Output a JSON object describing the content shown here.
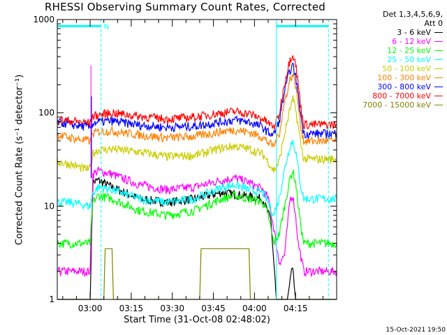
{
  "chart_data": {
    "type": "line",
    "title": "RHESSI Observing Summary Count Rates, Corrected",
    "xlabel": "Start Time (31-Oct-08 02:48:02)",
    "ylabel": "Corrected Count Rate (s⁻¹ detector⁻¹)",
    "yscale": "log",
    "ylim": [
      1,
      1000
    ],
    "xlim_minutes": [
      0,
      102
    ],
    "x_ticks": [
      {
        "label": "03:00",
        "minutes": 12
      },
      {
        "label": "03:15",
        "minutes": 27
      },
      {
        "label": "03:30",
        "minutes": 42
      },
      {
        "label": "03:45",
        "minutes": 57
      },
      {
        "label": "04:00",
        "minutes": 72
      },
      {
        "label": "04:15",
        "minutes": 87
      }
    ],
    "y_ticks": [
      {
        "label": "1000",
        "value": 1000
      },
      {
        "label": "100",
        "value": 100
      },
      {
        "label": "10",
        "value": 10
      },
      {
        "label": "1",
        "value": 1
      }
    ],
    "legend_header": [
      "Det 1,3,4,5,6,9,",
      "Att 0"
    ],
    "legend_placement": "right",
    "series": [
      {
        "name": "3 - 6 keV",
        "color": "#000000",
        "points": [
          [
            0,
            1
          ],
          [
            12,
            1
          ],
          [
            13,
            18
          ],
          [
            15,
            19
          ],
          [
            20,
            16
          ],
          [
            30,
            12
          ],
          [
            40,
            11
          ],
          [
            50,
            12
          ],
          [
            60,
            14
          ],
          [
            68,
            13
          ],
          [
            75,
            12
          ],
          [
            78,
            7
          ],
          [
            80,
            1
          ],
          [
            84,
            1
          ],
          [
            85.5,
            2
          ],
          [
            86,
            2
          ],
          [
            87,
            1
          ],
          [
            102,
            1
          ]
        ]
      },
      {
        "name": "6 - 12 keV",
        "color": "#ff00ff",
        "points": [
          [
            0,
            2
          ],
          [
            12,
            2
          ],
          [
            13,
            22
          ],
          [
            15,
            24
          ],
          [
            20,
            22
          ],
          [
            30,
            17
          ],
          [
            40,
            15
          ],
          [
            50,
            16
          ],
          [
            60,
            19
          ],
          [
            65,
            20
          ],
          [
            70,
            18
          ],
          [
            75,
            15
          ],
          [
            77,
            12
          ],
          [
            79,
            6
          ],
          [
            81,
            2.5
          ],
          [
            83,
            3
          ],
          [
            84,
            6
          ],
          [
            85,
            12
          ],
          [
            86,
            13
          ],
          [
            87,
            8
          ],
          [
            88,
            4
          ],
          [
            90,
            2
          ],
          [
            102,
            2
          ]
        ]
      },
      {
        "name": "12 - 25 keV",
        "color": "#00ff00",
        "points": [
          [
            0,
            4
          ],
          [
            12,
            4
          ],
          [
            13,
            11
          ],
          [
            15,
            13
          ],
          [
            20,
            12
          ],
          [
            30,
            9
          ],
          [
            40,
            8
          ],
          [
            50,
            9
          ],
          [
            60,
            12
          ],
          [
            65,
            13
          ],
          [
            70,
            12
          ],
          [
            75,
            11
          ],
          [
            77,
            8
          ],
          [
            79,
            4
          ],
          [
            81,
            5
          ],
          [
            83,
            10
          ],
          [
            85,
            20
          ],
          [
            86,
            24
          ],
          [
            87,
            18
          ],
          [
            88,
            10
          ],
          [
            89,
            6
          ],
          [
            90,
            4
          ],
          [
            102,
            4
          ]
        ]
      },
      {
        "name": "25 - 50 keV",
        "color": "#00ffff",
        "points": [
          [
            0,
            11
          ],
          [
            5,
            11
          ],
          [
            12,
            10
          ],
          [
            13,
            14
          ],
          [
            15,
            16
          ],
          [
            20,
            15
          ],
          [
            30,
            12
          ],
          [
            40,
            11
          ],
          [
            50,
            12
          ],
          [
            60,
            16
          ],
          [
            65,
            17
          ],
          [
            70,
            15
          ],
          [
            75,
            14
          ],
          [
            77,
            11
          ],
          [
            79,
            8
          ],
          [
            81,
            12
          ],
          [
            83,
            25
          ],
          [
            85,
            45
          ],
          [
            86,
            50
          ],
          [
            87,
            40
          ],
          [
            88,
            25
          ],
          [
            89,
            16
          ],
          [
            90,
            12
          ],
          [
            102,
            12
          ]
        ]
      },
      {
        "name": "50 - 100 keV",
        "color": "#cccc00",
        "points": [
          [
            0,
            30
          ],
          [
            5,
            28
          ],
          [
            10,
            25
          ],
          [
            12,
            25
          ],
          [
            13,
            37
          ],
          [
            15,
            40
          ],
          [
            20,
            41
          ],
          [
            30,
            38
          ],
          [
            40,
            34
          ],
          [
            50,
            35
          ],
          [
            60,
            42
          ],
          [
            65,
            44
          ],
          [
            70,
            41
          ],
          [
            75,
            36
          ],
          [
            77,
            30
          ],
          [
            79,
            24
          ],
          [
            81,
            30
          ],
          [
            83,
            60
          ],
          [
            85,
            110
          ],
          [
            86,
            140
          ],
          [
            87,
            110
          ],
          [
            88,
            70
          ],
          [
            89,
            45
          ],
          [
            90,
            32
          ],
          [
            102,
            32
          ]
        ]
      },
      {
        "name": "100 - 300 keV",
        "color": "#ff8000",
        "points": [
          [
            0,
            58
          ],
          [
            5,
            54
          ],
          [
            12,
            50
          ],
          [
            13,
            60
          ],
          [
            15,
            63
          ],
          [
            20,
            64
          ],
          [
            30,
            58
          ],
          [
            40,
            54
          ],
          [
            50,
            56
          ],
          [
            60,
            63
          ],
          [
            65,
            66
          ],
          [
            70,
            62
          ],
          [
            75,
            55
          ],
          [
            77,
            48
          ],
          [
            79,
            44
          ],
          [
            81,
            60
          ],
          [
            83,
            130
          ],
          [
            85,
            230
          ],
          [
            86,
            260
          ],
          [
            87,
            200
          ],
          [
            88,
            120
          ],
          [
            89,
            70
          ],
          [
            90,
            50
          ],
          [
            102,
            50
          ]
        ]
      },
      {
        "name": "300 - 800 keV",
        "color": "#0000ff",
        "points": [
          [
            0,
            80
          ],
          [
            5,
            75
          ],
          [
            12,
            70
          ],
          [
            13,
            78
          ],
          [
            15,
            80
          ],
          [
            20,
            82
          ],
          [
            30,
            74
          ],
          [
            40,
            70
          ],
          [
            50,
            72
          ],
          [
            60,
            80
          ],
          [
            65,
            84
          ],
          [
            70,
            80
          ],
          [
            75,
            70
          ],
          [
            77,
            62
          ],
          [
            79,
            58
          ],
          [
            81,
            80
          ],
          [
            83,
            170
          ],
          [
            85,
            290
          ],
          [
            86,
            320
          ],
          [
            87,
            250
          ],
          [
            88,
            150
          ],
          [
            89,
            90
          ],
          [
            90,
            60
          ],
          [
            102,
            60
          ]
        ]
      },
      {
        "name": "800 - 7000 keV",
        "color": "#ff0000",
        "points": [
          [
            0,
            85
          ],
          [
            5,
            82
          ],
          [
            12,
            78
          ],
          [
            13,
            92
          ],
          [
            15,
            95
          ],
          [
            20,
            100
          ],
          [
            30,
            92
          ],
          [
            40,
            86
          ],
          [
            50,
            90
          ],
          [
            60,
            100
          ],
          [
            65,
            104
          ],
          [
            70,
            98
          ],
          [
            75,
            86
          ],
          [
            77,
            78
          ],
          [
            79,
            70
          ],
          [
            81,
            95
          ],
          [
            83,
            210
          ],
          [
            85,
            380
          ],
          [
            86,
            430
          ],
          [
            87,
            340
          ],
          [
            88,
            200
          ],
          [
            89,
            110
          ],
          [
            90,
            75
          ],
          [
            102,
            75
          ]
        ]
      },
      {
        "name": "7000 - 15000 keV",
        "color": "#808000",
        "points": [
          [
            0,
            1
          ],
          [
            17,
            1
          ],
          [
            17.5,
            3.5
          ],
          [
            20,
            3.5
          ],
          [
            20.5,
            1
          ],
          [
            52,
            1
          ],
          [
            52.5,
            3.5
          ],
          [
            70,
            3.5
          ],
          [
            70.5,
            1
          ],
          [
            102,
            1
          ]
        ]
      }
    ],
    "annotations": [
      {
        "text": "N",
        "color": "#00ffff"
      }
    ]
  },
  "timestamp": "15-Oct-2021 19:50"
}
